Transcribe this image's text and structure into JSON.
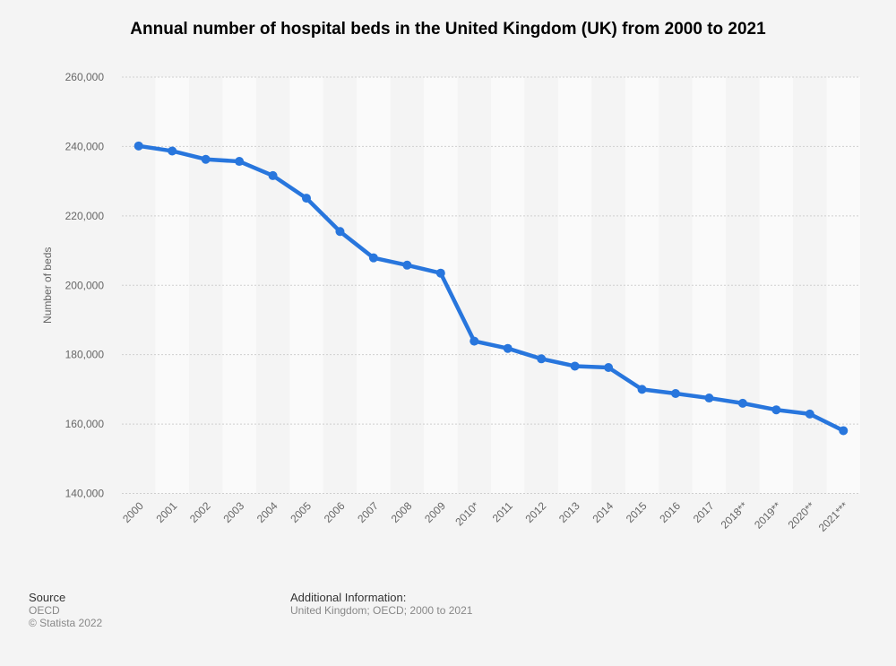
{
  "chart_data": {
    "type": "line",
    "title": "Annual number of hospital beds in the United Kingdom (UK) from 2000 to 2021",
    "xlabel": "",
    "ylabel": "Number of beds",
    "ylim": [
      140000,
      260000
    ],
    "yticks": [
      140000,
      160000,
      180000,
      200000,
      220000,
      240000,
      260000
    ],
    "ytick_labels": [
      "140,000",
      "160,000",
      "180,000",
      "200,000",
      "220,000",
      "240,000",
      "260,000"
    ],
    "grid": true,
    "categories": [
      "2000",
      "2001",
      "2002",
      "2003",
      "2004",
      "2005",
      "2006",
      "2007",
      "2008",
      "2009",
      "2010*",
      "2011",
      "2012",
      "2013",
      "2014",
      "2015",
      "2016",
      "2017",
      "2018**",
      "2019**",
      "2020**",
      "2021***"
    ],
    "series": [
      {
        "name": "Number of beds",
        "color": "#2876dd",
        "values": [
          240150,
          238700,
          236300,
          235700,
          231600,
          225100,
          215500,
          207900,
          205800,
          203500,
          183900,
          181800,
          178800,
          176700,
          176300,
          170000,
          168800,
          167500,
          166000,
          164100,
          162900,
          158100
        ]
      }
    ]
  },
  "footer": {
    "source_heading": "Source",
    "source_lines": [
      "OECD",
      "© Statista 2022"
    ],
    "info_heading": "Additional Information:",
    "info_text": "United Kingdom; OECD; 2000 to 2021"
  }
}
